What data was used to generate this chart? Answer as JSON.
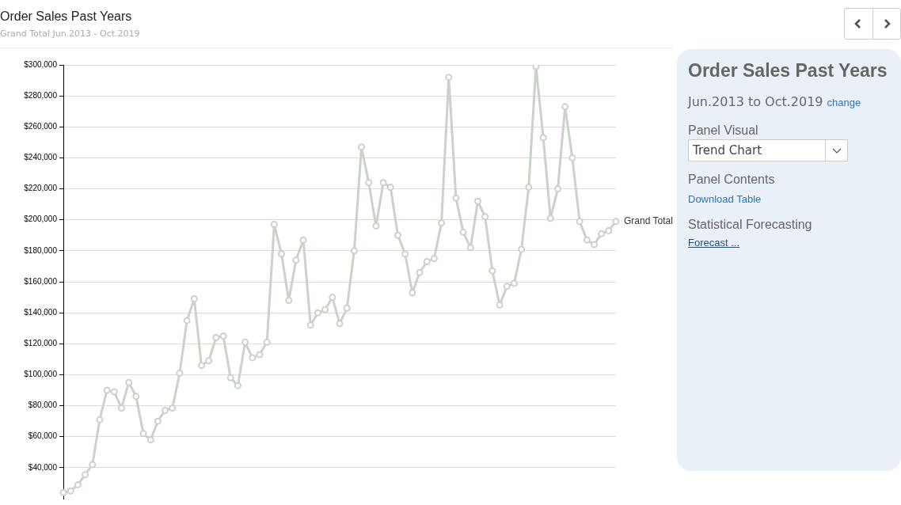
{
  "chart_data": {
    "type": "line",
    "title": "Order Sales Past Years",
    "subtitle": "Grand Total Jun.2013 - Oct.2019",
    "categories": [
      null,
      null,
      null,
      null,
      null,
      null,
      null,
      null,
      null,
      null,
      null,
      null,
      null,
      null,
      null,
      null,
      null,
      null,
      null,
      null,
      null,
      null,
      null,
      null,
      null,
      null,
      null,
      null,
      null,
      null,
      null,
      null,
      null,
      null,
      null,
      null,
      null,
      null,
      null,
      null,
      null,
      null,
      null,
      null,
      null,
      null,
      null,
      null,
      null,
      null,
      null,
      null,
      null,
      null,
      null,
      null,
      null,
      null,
      null,
      null,
      null,
      null,
      null,
      null,
      null,
      null,
      null,
      null,
      null,
      null,
      null,
      null,
      null,
      null,
      null,
      null,
      null
    ],
    "series": [
      {
        "name": "Grand Total",
        "color": "#c9d3c8",
        "values": [
          24000,
          25000,
          29000,
          35500,
          42000,
          71000,
          90000,
          89000,
          78500,
          95000,
          86000,
          62000,
          58000,
          70000,
          77000,
          78500,
          101000,
          135000,
          149000,
          106000,
          109000,
          124000,
          125000,
          98000,
          93000,
          121000,
          111000,
          113000,
          121000,
          197000,
          178000,
          148000,
          174000,
          187000,
          132000,
          140000,
          142000,
          150000,
          133000,
          143000,
          180000,
          247000,
          224000,
          196000,
          224000,
          221000,
          190000,
          178000,
          153000,
          166000,
          173000,
          175000,
          198000,
          292000,
          214000,
          192000,
          182000,
          212000,
          202000,
          167000,
          145000,
          157000,
          159000,
          181000,
          221000,
          299000,
          253000,
          201000,
          220000,
          273000,
          240000,
          199000,
          187000,
          184000,
          191000,
          193000,
          199000
        ]
      }
    ],
    "ylim": [
      20000,
      300000
    ],
    "yticks": [
      {
        "value": 40000,
        "label": "$40,000"
      },
      {
        "value": 60000,
        "label": "$60,000"
      },
      {
        "value": 80000,
        "label": "$80,000"
      },
      {
        "value": 100000,
        "label": "$100,000"
      },
      {
        "value": 120000,
        "label": "$120,000"
      },
      {
        "value": 140000,
        "label": "$140,000"
      },
      {
        "value": 160000,
        "label": "$160,000"
      },
      {
        "value": 180000,
        "label": "$180,000"
      },
      {
        "value": 200000,
        "label": "$200,000"
      },
      {
        "value": 220000,
        "label": "$220,000"
      },
      {
        "value": 240000,
        "label": "$240,000"
      },
      {
        "value": 260000,
        "label": "$260,000"
      },
      {
        "value": 280000,
        "label": "$280,000"
      },
      {
        "value": 300000,
        "label": "$300,000"
      }
    ],
    "tick_labels": "y",
    "grid": "y",
    "legend": false,
    "marker": "circle",
    "line_style": "solid",
    "annotations": [
      "Order Sales Past Years",
      "Jun.2013 to Oct.2019",
      "change",
      "Panel Visual",
      "Trend Chart",
      "Panel Contents",
      "Download Table",
      "Statistical Forecasting",
      "Forecast ..."
    ]
  }
}
